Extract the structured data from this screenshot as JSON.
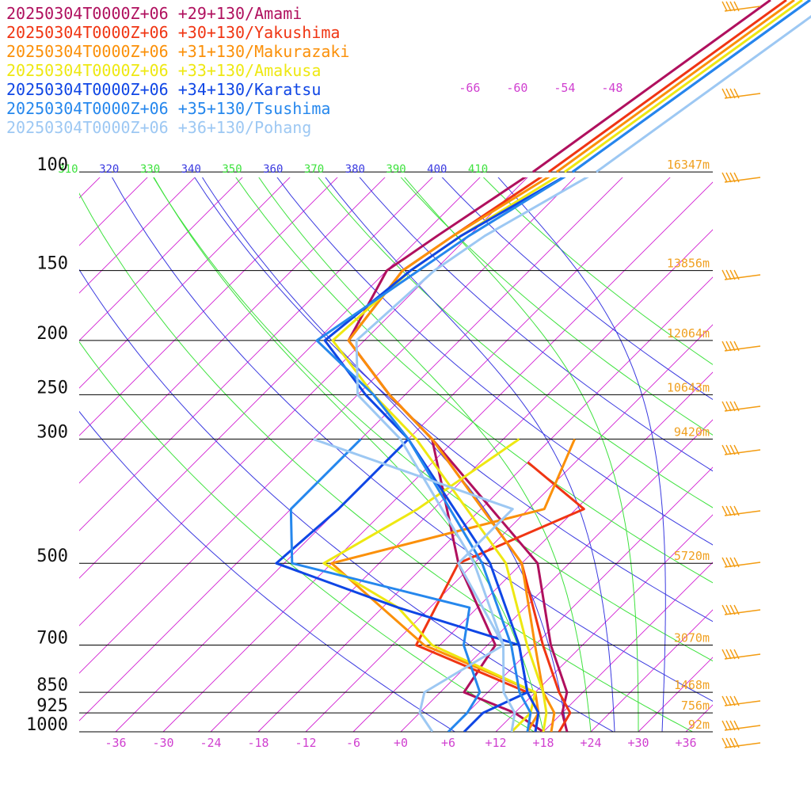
{
  "chart_data": {
    "type": "line",
    "title": "",
    "xlabel": "",
    "ylabel": "",
    "xlim": [
      -40,
      40
    ],
    "ylim_hpa": [
      1000,
      100
    ],
    "x_ticks": [
      "-36",
      "-30",
      "-24",
      "-18",
      "-12",
      "-6",
      "+0",
      "+6",
      "+12",
      "+18",
      "+24",
      "+30",
      "+36"
    ],
    "x_tick_values": [
      -36,
      -30,
      -24,
      -18,
      -12,
      -6,
      0,
      6,
      12,
      18,
      24,
      30,
      36
    ],
    "pressure_levels": [
      {
        "label": "100",
        "p": 100,
        "height": "16347m"
      },
      {
        "label": "150",
        "p": 150,
        "height": "13856m"
      },
      {
        "label": "200",
        "p": 200,
        "height": "12064m"
      },
      {
        "label": "250",
        "p": 250,
        "height": "10643m"
      },
      {
        "label": "300",
        "p": 300,
        "height": "9420m"
      },
      {
        "label": "500",
        "p": 500,
        "height": "5720m"
      },
      {
        "label": "700",
        "p": 700,
        "height": "3070m"
      },
      {
        "label": "850",
        "p": 850,
        "height": "1468m"
      },
      {
        "label": "925",
        "p": 925,
        "height": "756m"
      },
      {
        "label": "1000",
        "p": 1000,
        "height": "92m"
      }
    ],
    "theta_labels": [
      "310",
      "320",
      "330",
      "340",
      "350",
      "360",
      "370",
      "380",
      "390",
      "400",
      "410"
    ],
    "theta_values": [
      310,
      320,
      330,
      340,
      350,
      360,
      370,
      380,
      390,
      400,
      410
    ],
    "isotherm_labels": [
      "-66",
      "-60",
      "-54",
      "-48"
    ],
    "isotherm_label_values": [
      -66,
      -60,
      -54,
      -48
    ],
    "grid": true,
    "legend_position": "top-left",
    "series": [
      {
        "name": "20250304T0000Z+06 +29+130/Amami",
        "color": "#b0105e",
        "temp": [
          [
            1000,
            21
          ],
          [
            925,
            18
          ],
          [
            850,
            16
          ],
          [
            700,
            8
          ],
          [
            500,
            -4
          ],
          [
            300,
            -33
          ],
          [
            250,
            -44
          ],
          [
            200,
            -56
          ],
          [
            150,
            -60
          ],
          [
            130,
            -58
          ],
          [
            100,
            -54
          ]
        ],
        "dewpt": [
          [
            1000,
            18
          ],
          [
            925,
            12
          ],
          [
            850,
            3
          ],
          [
            700,
            1
          ],
          [
            500,
            -14
          ],
          [
            300,
            -33
          ],
          [
            250,
            -44
          ],
          [
            200,
            -56
          ]
        ]
      },
      {
        "name": "20250304T0000Z+06 +30+130/Yakushima",
        "color": "#f03513",
        "temp": [
          [
            1000,
            20
          ],
          [
            925,
            19
          ],
          [
            850,
            15
          ],
          [
            700,
            7
          ],
          [
            500,
            -6
          ],
          [
            300,
            -33
          ],
          [
            250,
            -44
          ],
          [
            200,
            -56
          ],
          [
            150,
            -58
          ],
          [
            130,
            -56
          ],
          [
            100,
            -52
          ]
        ],
        "dewpt": [
          [
            1000,
            17
          ],
          [
            925,
            15
          ],
          [
            850,
            11
          ],
          [
            700,
            -9
          ],
          [
            500,
            -14
          ],
          [
            400,
            -5
          ],
          [
            330,
            -18
          ]
        ]
      },
      {
        "name": "20250304T0000Z+06 +31+130/Makurazaki",
        "color": "#fb9009",
        "temp": [
          [
            1000,
            19
          ],
          [
            925,
            17
          ],
          [
            850,
            13
          ],
          [
            700,
            6
          ],
          [
            500,
            -6
          ],
          [
            300,
            -33
          ],
          [
            250,
            -44
          ],
          [
            200,
            -56
          ],
          [
            150,
            -58
          ],
          [
            130,
            -56
          ],
          [
            100,
            -51
          ]
        ],
        "dewpt": [
          [
            1000,
            16
          ],
          [
            925,
            15
          ],
          [
            850,
            12
          ],
          [
            700,
            -8
          ],
          [
            500,
            -30
          ],
          [
            400,
            -10
          ],
          [
            300,
            -15
          ]
        ]
      },
      {
        "name": "20250304T0000Z+06 +33+130/Amakusa",
        "color": "#eee812",
        "temp": [
          [
            1000,
            18
          ],
          [
            925,
            16
          ],
          [
            850,
            13
          ],
          [
            700,
            5
          ],
          [
            500,
            -8
          ],
          [
            300,
            -35
          ],
          [
            250,
            -46
          ],
          [
            200,
            -58
          ],
          [
            150,
            -57
          ],
          [
            130,
            -55
          ],
          [
            100,
            -50
          ]
        ],
        "dewpt": [
          [
            1000,
            14
          ],
          [
            925,
            14
          ],
          [
            850,
            12
          ],
          [
            700,
            -7
          ],
          [
            600,
            -16
          ],
          [
            500,
            -31
          ],
          [
            400,
            -26
          ],
          [
            300,
            -22
          ]
        ]
      },
      {
        "name": "20250304T0000Z+06 +34+130/Karatsu",
        "color": "#0f46e5",
        "temp": [
          [
            1000,
            17
          ],
          [
            925,
            15
          ],
          [
            850,
            11
          ],
          [
            700,
            4
          ],
          [
            500,
            -10
          ],
          [
            300,
            -36
          ],
          [
            250,
            -47
          ],
          [
            200,
            -59
          ],
          [
            150,
            -57
          ],
          [
            130,
            -55
          ],
          [
            100,
            -49
          ]
        ],
        "dewpt": [
          [
            1000,
            8
          ],
          [
            925,
            8
          ],
          [
            850,
            11
          ],
          [
            700,
            4
          ],
          [
            600,
            -16
          ],
          [
            500,
            -37
          ],
          [
            400,
            -36
          ],
          [
            300,
            -36
          ]
        ]
      },
      {
        "name": "20250304T0000Z+06 +35+130/Tsushima",
        "color": "#2587ed",
        "temp": [
          [
            1000,
            16
          ],
          [
            925,
            14
          ],
          [
            850,
            10
          ],
          [
            700,
            3
          ],
          [
            500,
            -11
          ],
          [
            300,
            -36
          ],
          [
            250,
            -46
          ],
          [
            200,
            -60
          ],
          [
            150,
            -56
          ],
          [
            130,
            -54
          ],
          [
            100,
            -49
          ]
        ],
        "dewpt": [
          [
            1000,
            6
          ],
          [
            925,
            6
          ],
          [
            850,
            5
          ],
          [
            700,
            -3
          ],
          [
            600,
            -7
          ],
          [
            500,
            -35
          ],
          [
            400,
            -42
          ],
          [
            300,
            -42
          ]
        ]
      },
      {
        "name": "20250304T0000Z+06 +36+130/Pohang",
        "color": "#9dc8f3",
        "temp": [
          [
            1000,
            14
          ],
          [
            925,
            12
          ],
          [
            850,
            8
          ],
          [
            700,
            2
          ],
          [
            500,
            -12
          ],
          [
            300,
            -37
          ],
          [
            250,
            -48
          ],
          [
            200,
            -55
          ],
          [
            150,
            -54
          ],
          [
            130,
            -52
          ],
          [
            100,
            -46
          ]
        ],
        "dewpt": [
          [
            1000,
            4
          ],
          [
            925,
            0
          ],
          [
            850,
            -2
          ],
          [
            700,
            2
          ],
          [
            500,
            -14
          ],
          [
            400,
            -14
          ],
          [
            300,
            -48
          ]
        ]
      }
    ]
  }
}
